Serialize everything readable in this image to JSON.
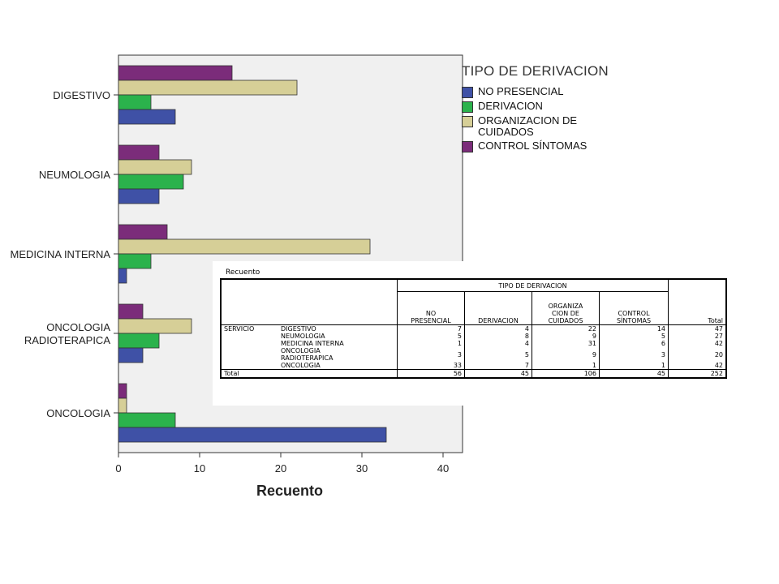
{
  "chart_data": {
    "type": "bar",
    "orientation": "horizontal",
    "categories": [
      "DIGESTIVO",
      "NEUMOLOGIA",
      "MEDICINA INTERNA",
      "ONCOLOGIA\nRADIOTERAPICA",
      "ONCOLOGIA"
    ],
    "series": [
      {
        "name": "NO PRESENCIAL",
        "color": "#3f51a6",
        "values": [
          7,
          5,
          1,
          3,
          33
        ]
      },
      {
        "name": "DERIVACION",
        "color": "#2bb24c",
        "values": [
          4,
          8,
          4,
          5,
          7
        ]
      },
      {
        "name": "ORGANIZACION DE\nCUIDADOS",
        "color": "#d6cf97",
        "values": [
          22,
          9,
          31,
          9,
          1
        ]
      },
      {
        "name": "CONTROL SÍNTOMAS",
        "color": "#7b2c7a",
        "values": [
          14,
          5,
          6,
          3,
          1
        ]
      }
    ],
    "xlabel": "Recuento",
    "xticks": [
      0,
      10,
      20,
      30,
      40
    ],
    "xlim": [
      0,
      42.4
    ],
    "legend_title": "TIPO DE DERIVACION",
    "legend_position": "right",
    "plot_background": "#f0f0f0"
  },
  "table": {
    "caption": "Recuento",
    "header_group": "TIPO DE DERIVACION",
    "columns": [
      [
        "NO",
        "PRESENCIAL"
      ],
      [
        "DERIVACION"
      ],
      [
        "ORGANIZA",
        "CION DE",
        "CUIDADOS"
      ],
      [
        "CONTROL",
        "SÍNTOMAS"
      ],
      [
        "Total"
      ]
    ],
    "row_group": "SERVICIO",
    "rows": [
      {
        "label": [
          "DIGESTIVO"
        ],
        "values": [
          "7",
          "4",
          "22",
          "14",
          "47"
        ]
      },
      {
        "label": [
          "NEUMOLOGIA"
        ],
        "values": [
          "5",
          "8",
          "9",
          "5",
          "27"
        ]
      },
      {
        "label": [
          "MEDICINA INTERNA"
        ],
        "values": [
          "1",
          "4",
          "31",
          "6",
          "42"
        ]
      },
      {
        "label": [
          "ONCOLOGIA",
          "RADIOTERAPICA"
        ],
        "values": [
          "3",
          "5",
          "9",
          "3",
          "20"
        ]
      },
      {
        "label": [
          "ONCOLOGIA"
        ],
        "values": [
          "33",
          "7",
          "1",
          "1",
          "42"
        ]
      }
    ],
    "total_label": "Total",
    "total_values": [
      "56",
      "45",
      "106",
      "45",
      "252"
    ]
  }
}
